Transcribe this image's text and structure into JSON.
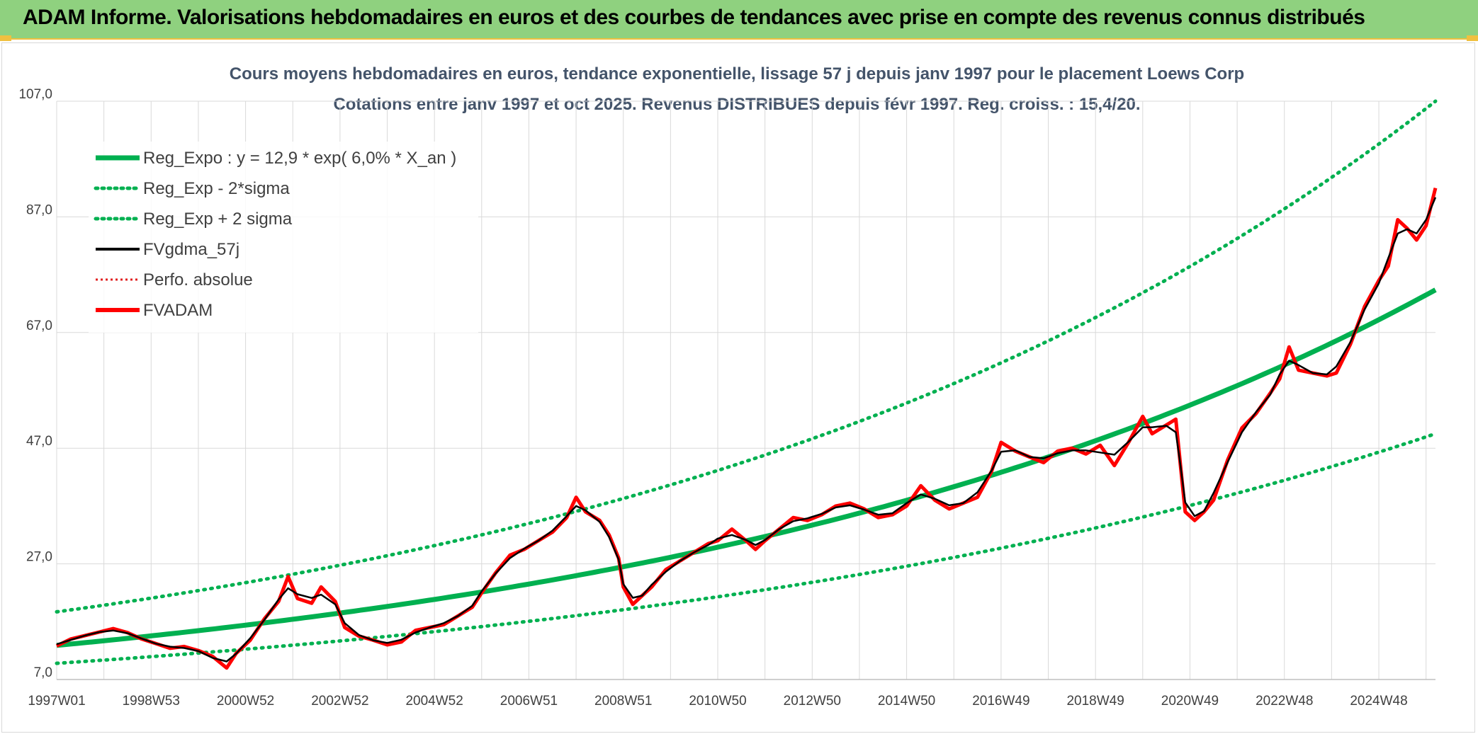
{
  "header": {
    "title": "ADAM Informe. Valorisations hebdomadaires en euros et des courbes de tendances avec prise en compte des revenus connus distribués"
  },
  "colors": {
    "banner": "#8fd17f",
    "accent": "#f0c040",
    "reg_expo": "#00b050",
    "fvgdma": "#000000",
    "fvadam": "#ff0000",
    "perfo": "#e02020",
    "title_text": "#44546a"
  },
  "chart_data": {
    "type": "line",
    "title": "Cours moyens hebdomadaires en euros, tendance exponentielle, lissage 57 j depuis janv 1997 pour le placement Loews Corp",
    "subtitle": "Cotations entre janv 1997 et oct 2025. Revenus DISTRIBUES depuis févr 1997. Reg. croiss. : 15,4/20.",
    "xlabel": "",
    "ylabel": "",
    "ylim": [
      7,
      107
    ],
    "grid": true,
    "legend_position": "top-left",
    "y_ticks": [
      "7,0",
      "27,0",
      "47,0",
      "67,0",
      "87,0",
      "107,0"
    ],
    "x_tick_labels": [
      "1997W01",
      "1998W53",
      "2000W52",
      "2002W52",
      "2004W52",
      "2006W51",
      "2008W51",
      "2010W50",
      "2012W50",
      "2014W50",
      "2016W49",
      "2018W49",
      "2020W49",
      "2022W48",
      "2024W48"
    ],
    "x_tick_years": [
      1997.0,
      1999.0,
      2001.0,
      2003.0,
      2005.0,
      2007.0,
      2009.0,
      2011.0,
      2013.0,
      2015.0,
      2017.0,
      2019.0,
      2021.0,
      2023.0,
      2025.0
    ],
    "x_range": [
      1997.0,
      2026.2
    ],
    "regression": {
      "label": "Reg_Expo : y = 12,9 * exp( 6,0% *  X_an )",
      "a": 12.9,
      "rate": 0.06,
      "minus2sigma_start": 9.8,
      "minus2sigma_end": 49.5,
      "plus2sigma_start": 18.7,
      "plus2sigma_end": 107.0
    },
    "series": [
      {
        "name": "Reg_Expo : y = 12,9 * exp( 6,0% *  X_an )",
        "style": "solid-thick",
        "color": "#00b050"
      },
      {
        "name": "Reg_Exp - 2*sigma",
        "style": "dotted",
        "color": "#00b050"
      },
      {
        "name": "Reg_Exp + 2 sigma",
        "style": "dotted",
        "color": "#00b050"
      },
      {
        "name": "FVgdma_57j",
        "style": "solid",
        "color": "#000000"
      },
      {
        "name": "Perfo. absolue",
        "style": "dotted",
        "color": "#e02020"
      },
      {
        "name": "FVADAM",
        "style": "solid-thick",
        "color": "#ff0000",
        "points": [
          [
            1997.0,
            12.8
          ],
          [
            1997.3,
            14.0
          ],
          [
            1997.6,
            14.6
          ],
          [
            1997.9,
            15.2
          ],
          [
            1998.2,
            15.8
          ],
          [
            1998.5,
            15.1
          ],
          [
            1998.8,
            14.0
          ],
          [
            1999.1,
            13.2
          ],
          [
            1999.4,
            12.4
          ],
          [
            1999.7,
            12.7
          ],
          [
            2000.0,
            12.0
          ],
          [
            2000.3,
            11.0
          ],
          [
            2000.6,
            9.0
          ],
          [
            2000.8,
            11.5
          ],
          [
            2001.1,
            13.8
          ],
          [
            2001.4,
            17.5
          ],
          [
            2001.7,
            20.5
          ],
          [
            2001.9,
            24.8
          ],
          [
            2002.1,
            21.0
          ],
          [
            2002.4,
            20.2
          ],
          [
            2002.6,
            23.0
          ],
          [
            2002.9,
            20.5
          ],
          [
            2003.1,
            16.0
          ],
          [
            2003.4,
            14.5
          ],
          [
            2003.7,
            13.8
          ],
          [
            2004.0,
            13.0
          ],
          [
            2004.3,
            13.5
          ],
          [
            2004.6,
            15.5
          ],
          [
            2004.9,
            16.0
          ],
          [
            2005.2,
            16.5
          ],
          [
            2005.5,
            18.0
          ],
          [
            2005.8,
            19.5
          ],
          [
            2006.0,
            22.0
          ],
          [
            2006.3,
            25.5
          ],
          [
            2006.6,
            28.5
          ],
          [
            2006.9,
            29.5
          ],
          [
            2007.2,
            31.0
          ],
          [
            2007.5,
            32.5
          ],
          [
            2007.8,
            35.0
          ],
          [
            2008.0,
            38.5
          ],
          [
            2008.2,
            36.0
          ],
          [
            2008.5,
            34.5
          ],
          [
            2008.7,
            32.0
          ],
          [
            2008.9,
            28.0
          ],
          [
            2009.0,
            23.0
          ],
          [
            2009.2,
            20.0
          ],
          [
            2009.4,
            21.5
          ],
          [
            2009.6,
            23.0
          ],
          [
            2009.9,
            26.0
          ],
          [
            2010.2,
            27.5
          ],
          [
            2010.5,
            29.0
          ],
          [
            2010.8,
            30.5
          ],
          [
            2011.0,
            31.0
          ],
          [
            2011.3,
            33.0
          ],
          [
            2011.6,
            31.0
          ],
          [
            2011.8,
            29.5
          ],
          [
            2012.0,
            31.0
          ],
          [
            2012.3,
            33.0
          ],
          [
            2012.6,
            35.0
          ],
          [
            2012.9,
            34.5
          ],
          [
            2013.2,
            35.5
          ],
          [
            2013.5,
            37.0
          ],
          [
            2013.8,
            37.5
          ],
          [
            2014.1,
            36.5
          ],
          [
            2014.4,
            35.0
          ],
          [
            2014.7,
            35.5
          ],
          [
            2015.0,
            37.0
          ],
          [
            2015.3,
            40.5
          ],
          [
            2015.6,
            38.0
          ],
          [
            2015.9,
            36.5
          ],
          [
            2016.2,
            37.5
          ],
          [
            2016.5,
            38.5
          ],
          [
            2016.8,
            43.0
          ],
          [
            2017.0,
            48.0
          ],
          [
            2017.3,
            46.5
          ],
          [
            2017.6,
            45.5
          ],
          [
            2017.9,
            44.5
          ],
          [
            2018.2,
            46.5
          ],
          [
            2018.5,
            47.0
          ],
          [
            2018.8,
            46.0
          ],
          [
            2019.1,
            47.5
          ],
          [
            2019.4,
            44.0
          ],
          [
            2019.7,
            48.0
          ],
          [
            2020.0,
            52.5
          ],
          [
            2020.2,
            49.5
          ],
          [
            2020.5,
            51.0
          ],
          [
            2020.7,
            52.0
          ],
          [
            2020.8,
            44.0
          ],
          [
            2020.9,
            36.0
          ],
          [
            2021.1,
            34.5
          ],
          [
            2021.3,
            36.0
          ],
          [
            2021.5,
            38.0
          ],
          [
            2021.8,
            45.0
          ],
          [
            2022.1,
            50.5
          ],
          [
            2022.4,
            53.0
          ],
          [
            2022.7,
            56.5
          ],
          [
            2022.9,
            59.0
          ],
          [
            2023.1,
            64.5
          ],
          [
            2023.3,
            60.5
          ],
          [
            2023.6,
            60.0
          ],
          [
            2023.9,
            59.5
          ],
          [
            2024.1,
            60.0
          ],
          [
            2024.4,
            65.0
          ],
          [
            2024.7,
            71.5
          ],
          [
            2025.0,
            76.0
          ],
          [
            2025.2,
            78.5
          ],
          [
            2025.4,
            86.5
          ],
          [
            2025.6,
            85.0
          ],
          [
            2025.8,
            83.0
          ],
          [
            2026.0,
            85.5
          ],
          [
            2026.2,
            92.0
          ]
        ]
      }
    ]
  }
}
